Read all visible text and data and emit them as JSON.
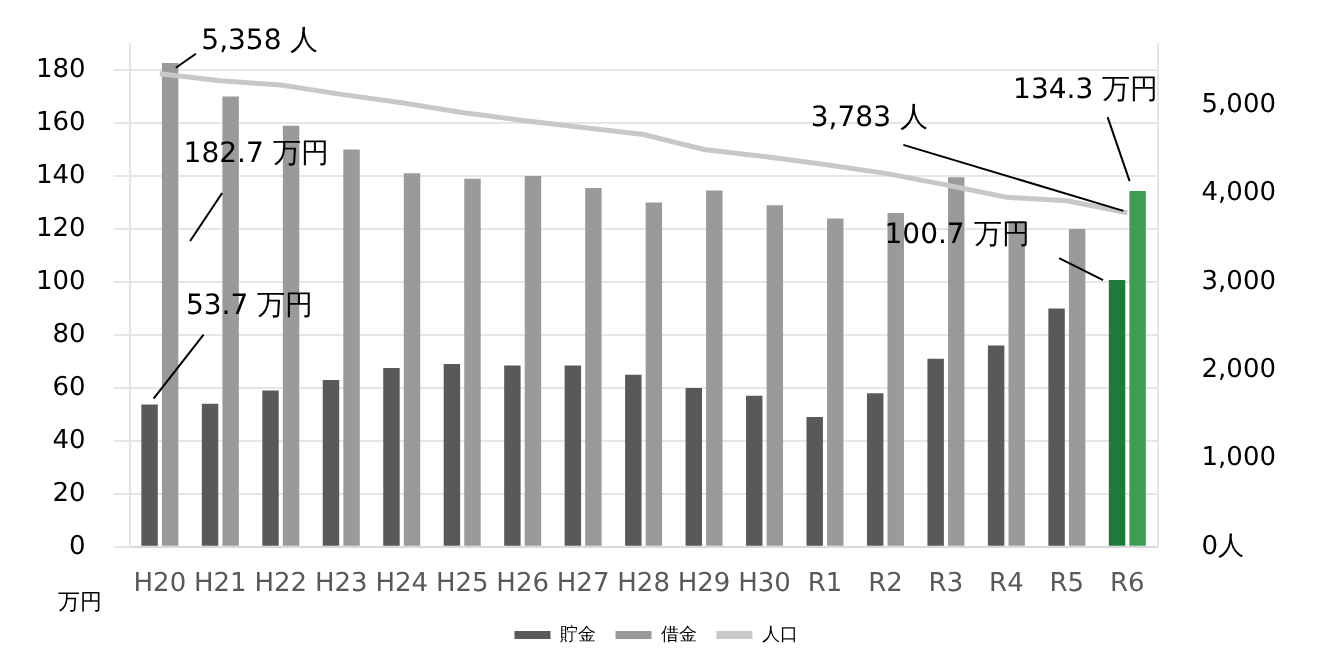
{
  "chart_data": {
    "type": "bar",
    "categories": [
      "H20",
      "H21",
      "H22",
      "H23",
      "H24",
      "H25",
      "H26",
      "H27",
      "H28",
      "H29",
      "H30",
      "R1",
      "R2",
      "R3",
      "R4",
      "R5",
      "R6"
    ],
    "series": [
      {
        "name": "貯金",
        "color": "#595959",
        "colors": [
          "#595959",
          "#595959",
          "#595959",
          "#595959",
          "#595959",
          "#595959",
          "#595959",
          "#595959",
          "#595959",
          "#595959",
          "#595959",
          "#595959",
          "#595959",
          "#595959",
          "#595959",
          "#595959",
          "#1e7a3a"
        ],
        "values": [
          53.7,
          54,
          59,
          63,
          67.5,
          69,
          68.5,
          68.5,
          65,
          60,
          57,
          49,
          58,
          71,
          76,
          90,
          100.7
        ],
        "value_labels": [
          "53.7 万円",
          null,
          null,
          null,
          null,
          null,
          null,
          null,
          null,
          null,
          null,
          null,
          null,
          null,
          null,
          null,
          "100.7 万円"
        ]
      },
      {
        "name": "借金",
        "color": "#9a9a9a",
        "colors": [
          "#9a9a9a",
          "#9a9a9a",
          "#9a9a9a",
          "#9a9a9a",
          "#9a9a9a",
          "#9a9a9a",
          "#9a9a9a",
          "#9a9a9a",
          "#9a9a9a",
          "#9a9a9a",
          "#9a9a9a",
          "#9a9a9a",
          "#9a9a9a",
          "#9a9a9a",
          "#9a9a9a",
          "#9a9a9a",
          "#3aa050"
        ],
        "values": [
          182.7,
          170,
          159,
          150,
          141,
          139,
          140,
          135.5,
          130,
          134.5,
          129,
          124,
          126,
          139.5,
          123,
          120,
          134.3
        ],
        "value_labels": [
          "182.7 万円",
          null,
          null,
          null,
          null,
          null,
          null,
          null,
          null,
          null,
          null,
          null,
          null,
          null,
          null,
          null,
          "134.3 万円"
        ]
      },
      {
        "name": "人口",
        "type": "line",
        "axis": "y2",
        "color": "#c8c8c8",
        "values": [
          5358,
          5280,
          5230,
          5125,
          5030,
          4920,
          4830,
          4750,
          4670,
          4500,
          4420,
          4330,
          4230,
          4100,
          3960,
          3920,
          3783
        ],
        "value_labels": [
          "5,358 人",
          null,
          null,
          null,
          null,
          null,
          null,
          null,
          null,
          null,
          null,
          null,
          null,
          null,
          null,
          null,
          "3,783 人"
        ]
      }
    ],
    "ylabel": "万円",
    "y2label": "人",
    "ylim": [
      0,
      190
    ],
    "yticks": [
      0,
      20,
      40,
      60,
      80,
      100,
      120,
      140,
      160,
      180
    ],
    "y2lim": [
      0,
      5700
    ],
    "y2ticks": [
      0,
      {
        "value": 1000,
        "label": "1,000"
      },
      {
        "value": 2000,
        "label": "2,000"
      },
      {
        "value": 3000,
        "label": "3,000"
      },
      {
        "value": 4000,
        "label": "4,000"
      },
      {
        "value": 5000,
        "label": "5,000"
      }
    ],
    "grid": "y",
    "legend": "bottom",
    "marker": "none",
    "line_style": "solid"
  }
}
